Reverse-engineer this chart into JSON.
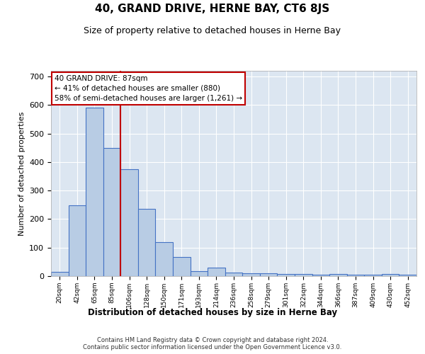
{
  "title": "40, GRAND DRIVE, HERNE BAY, CT6 8JS",
  "subtitle": "Size of property relative to detached houses in Herne Bay",
  "xlabel": "Distribution of detached houses by size in Herne Bay",
  "ylabel": "Number of detached properties",
  "property_label": "40 GRAND DRIVE: 87sqm",
  "annotation_line1": "← 41% of detached houses are smaller (880)",
  "annotation_line2": "58% of semi-detached houses are larger (1,261) →",
  "footer1": "Contains HM Land Registry data © Crown copyright and database right 2024.",
  "footer2": "Contains public sector information licensed under the Open Government Licence v3.0.",
  "bins": [
    "20sqm",
    "42sqm",
    "65sqm",
    "85sqm",
    "106sqm",
    "128sqm",
    "150sqm",
    "171sqm",
    "193sqm",
    "214sqm",
    "236sqm",
    "258sqm",
    "279sqm",
    "301sqm",
    "322sqm",
    "344sqm",
    "366sqm",
    "387sqm",
    "409sqm",
    "430sqm",
    "452sqm"
  ],
  "bar_values": [
    15,
    248,
    590,
    450,
    375,
    235,
    120,
    68,
    18,
    30,
    12,
    10,
    10,
    7,
    7,
    5,
    8,
    5,
    5,
    8,
    5
  ],
  "bar_color": "#b8cce4",
  "bar_edge_color": "#4472c4",
  "vline_color": "#c00000",
  "vline_pos": 3.5,
  "annotation_box_color": "#ffffff",
  "annotation_box_edge": "#c00000",
  "background_color": "#dce6f1",
  "ylim": [
    0,
    720
  ],
  "yticks": [
    0,
    100,
    200,
    300,
    400,
    500,
    600,
    700
  ]
}
